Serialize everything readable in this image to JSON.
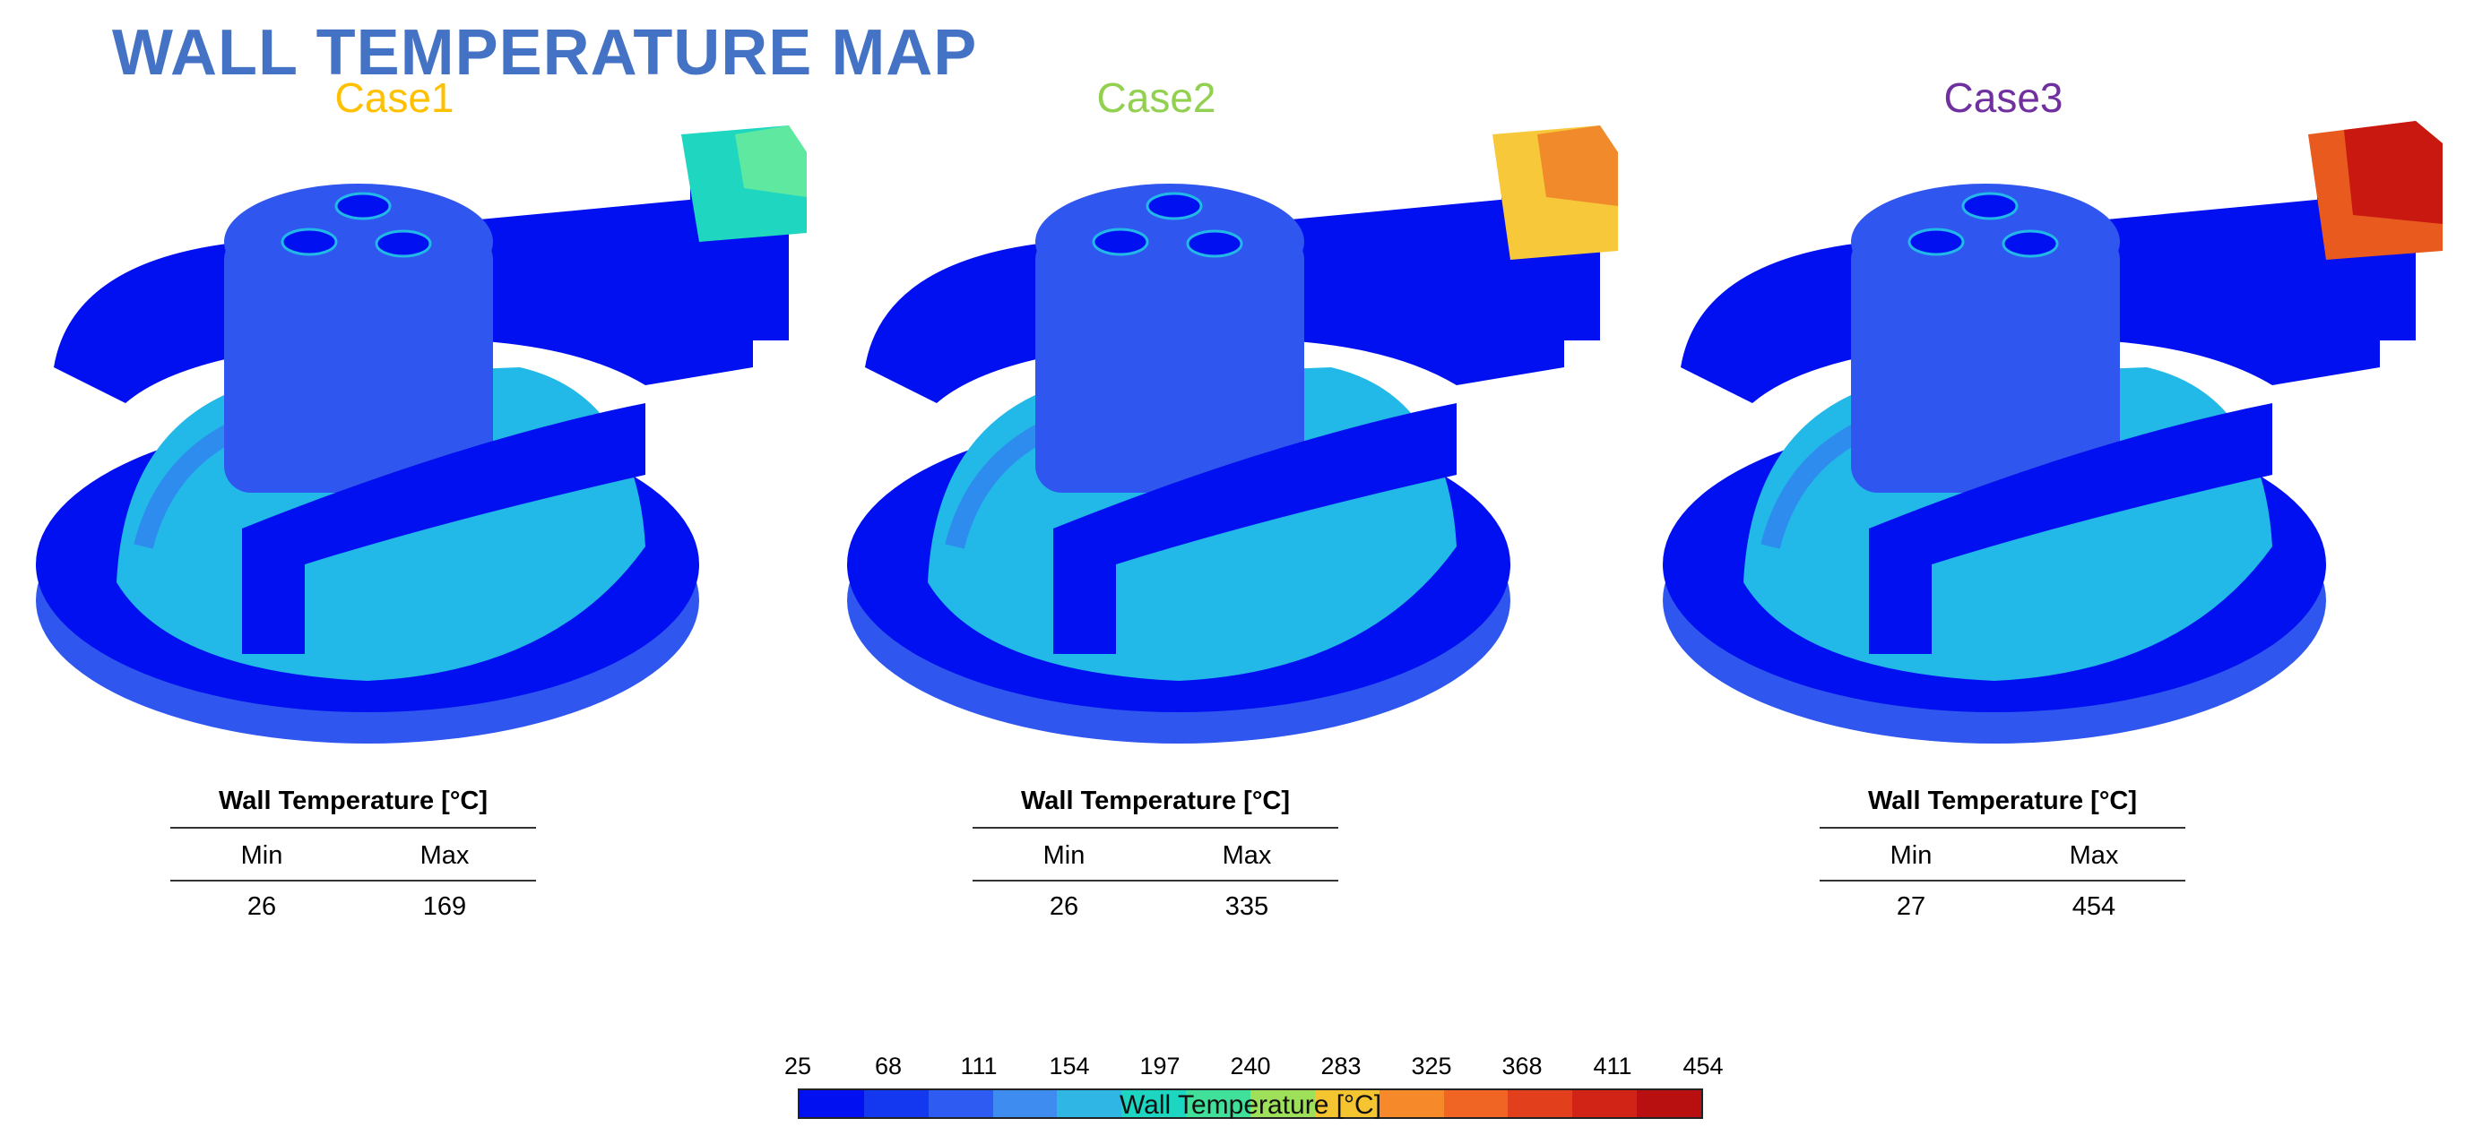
{
  "title": "WALL TEMPERATURE MAP",
  "colors": {
    "title": "#4472C4",
    "case1": "#FFC000",
    "case2": "#92D050",
    "case3": "#7030A0",
    "dark_blue": "#0010f0",
    "mid_blue": "#2f56ee",
    "cyan_blue": "#22b8e8"
  },
  "cases": [
    {
      "label": "Case1",
      "table_title": "Wall Temperature [°C]",
      "col_min": "Min",
      "col_max": "Max",
      "min": "26",
      "max": "169",
      "hot_spot_colors": [
        "#1fd6c0",
        "#5fe8a0"
      ]
    },
    {
      "label": "Case2",
      "table_title": "Wall Temperature [°C]",
      "col_min": "Min",
      "col_max": "Max",
      "min": "26",
      "max": "335",
      "hot_spot_colors": [
        "#f7c93a",
        "#f08a2a"
      ]
    },
    {
      "label": "Case3",
      "table_title": "Wall Temperature [°C]",
      "col_min": "Min",
      "col_max": "Max",
      "min": "27",
      "max": "454",
      "hot_spot_colors": [
        "#e85a1e",
        "#c8180f"
      ]
    }
  ],
  "colorbar": {
    "label": "Wall Temperature   [°C]",
    "ticks": [
      "25",
      "68",
      "111",
      "154",
      "197",
      "240",
      "283",
      "325",
      "368",
      "411",
      "454"
    ],
    "colors": [
      "#0010f0",
      "#1438f0",
      "#2e5cf2",
      "#3f8cf0",
      "#2fb6e4",
      "#1cd6c2",
      "#40e09a",
      "#9fe05a",
      "#f4c431",
      "#f68a2b",
      "#f06424",
      "#e2401c",
      "#d22416",
      "#b81010"
    ]
  }
}
